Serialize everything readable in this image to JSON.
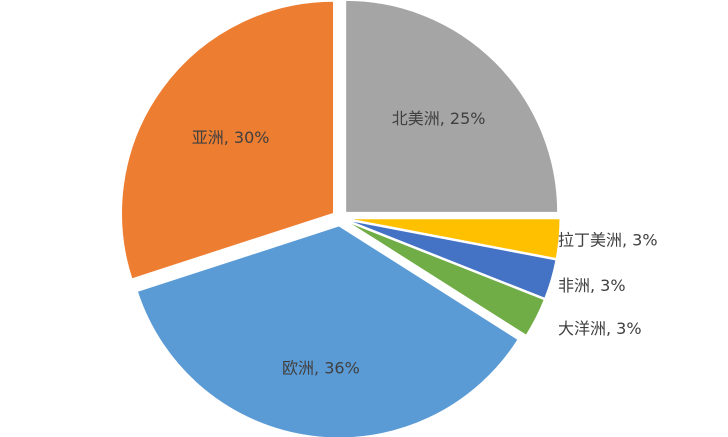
{
  "chart_data": {
    "type": "pie",
    "title": "",
    "series": [
      {
        "values": [
          {
            "category": "北美洲",
            "value": 25,
            "label": "北美洲, 25%",
            "color": "#A5A5A5"
          },
          {
            "category": "拉丁美洲",
            "value": 3,
            "label": "拉丁美洲, 3%",
            "color": "#FFC000"
          },
          {
            "category": "非洲",
            "value": 3,
            "label": "非洲, 3%",
            "color": "#4472C4"
          },
          {
            "category": "大洋洲",
            "value": 3,
            "label": "大洋洲, 3%",
            "color": "#70AD47"
          },
          {
            "category": "欧洲",
            "value": 36,
            "label": "欧洲, 36%",
            "color": "#5B9BD5"
          },
          {
            "category": "亚洲",
            "value": 30,
            "label": "亚洲, 30%",
            "color": "#ED7D31"
          }
        ]
      }
    ],
    "unit": "%",
    "legend": "none",
    "exploded": true
  }
}
